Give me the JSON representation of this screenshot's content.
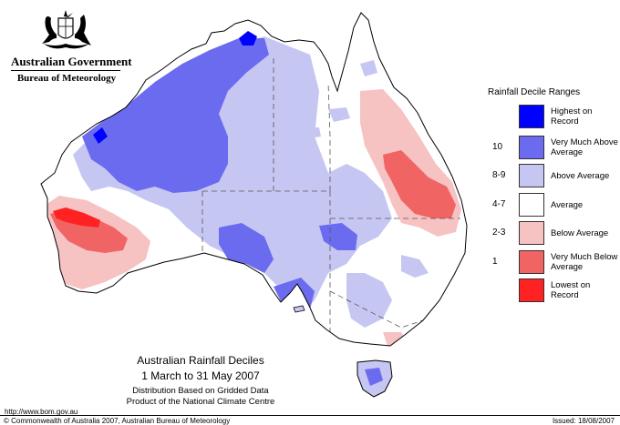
{
  "header": {
    "government": "Australian Government",
    "bureau": "Bureau of Meteorology"
  },
  "legend": {
    "title": "Rainfall Decile Ranges",
    "items": [
      {
        "range": "",
        "label": "Highest on Record",
        "color": "#0000ff"
      },
      {
        "range": "10",
        "label": "Very Much Above Average",
        "color": "#6b6bf0"
      },
      {
        "range": "8-9",
        "label": "Above Average",
        "color": "#c6c6f3"
      },
      {
        "range": "4-7",
        "label": "Average",
        "color": "#ffffff"
      },
      {
        "range": "2-3",
        "label": "Below Average",
        "color": "#f6c2c2"
      },
      {
        "range": "1",
        "label": "Very Much Below Average",
        "color": "#f16464"
      },
      {
        "range": "",
        "label": "Lowest on Record",
        "color": "#ff2222"
      }
    ]
  },
  "map": {
    "title": "Australian Rainfall Deciles",
    "period": "1 March to 31 May 2007",
    "note1": "Distribution Based on Gridded Data",
    "note2": "Product of the National Climate Centre"
  },
  "footer": {
    "url": "http://www.bom.gov.au",
    "copyright": "© Commonwealth of Australia 2007, Australian Bureau of Meteorology",
    "issued": "Issued: 18/08/2007"
  }
}
